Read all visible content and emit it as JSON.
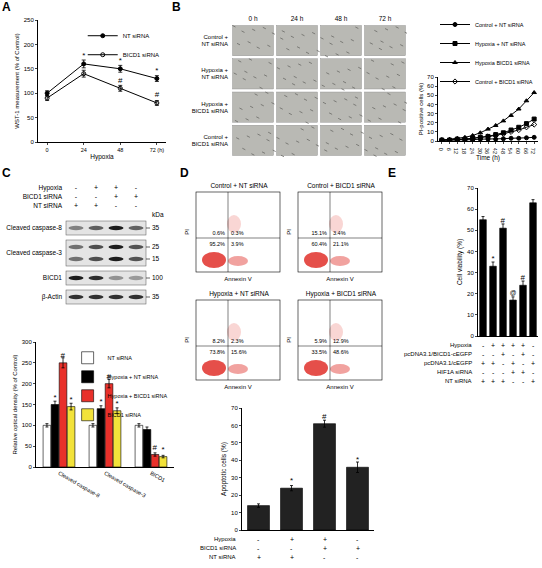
{
  "panel_labels": [
    "A",
    "B",
    "C",
    "D",
    "E"
  ],
  "chart_data": [
    {
      "type": "line",
      "x_label": "Hypoxia",
      "y_label": "WST-1 measurement (% of Control)",
      "x": [
        0,
        24,
        48,
        72
      ],
      "xlim": [
        -6,
        78
      ],
      "xticks": [
        0,
        24,
        48,
        {
          "value": 72,
          "label": "72 (h)"
        }
      ],
      "ylim": [
        0,
        250
      ],
      "yticks": [
        0,
        50,
        100,
        150,
        200,
        250
      ],
      "legend": "top right",
      "series": [
        {
          "name": "NT siRNA",
          "color": "#000000",
          "marker": "circle",
          "values": [
            100,
            160,
            150,
            130
          ],
          "errors": [
            5,
            8,
            7,
            6
          ],
          "sig": [
            "",
            "*",
            "*",
            "*"
          ]
        },
        {
          "name": "BICD1 siRNA",
          "color": "#000000",
          "marker": "circle-open",
          "values": [
            90,
            140,
            110,
            80
          ],
          "errors": [
            5,
            7,
            6,
            5
          ],
          "sig": [
            "",
            "*",
            "#",
            "#"
          ]
        }
      ]
    },
    {
      "type": "line",
      "x_label": "Time (h)",
      "y_label": "PI-positive cells (%)",
      "x": [
        0,
        6,
        12,
        18,
        24,
        30,
        36,
        42,
        48,
        54,
        60,
        66,
        72
      ],
      "xlim": [
        -3,
        75
      ],
      "xticks": [
        0,
        6,
        12,
        18,
        24,
        30,
        36,
        42,
        48,
        54,
        60,
        66,
        72
      ],
      "ylim": [
        0,
        70
      ],
      "yticks": [
        0,
        10,
        20,
        30,
        40,
        50,
        60,
        70
      ],
      "legend": "top",
      "series": [
        {
          "name": "Control + NT siRNA",
          "color": "#000000",
          "marker": "circle",
          "values": [
            1,
            1,
            1,
            1.5,
            1.5,
            2,
            2,
            2,
            2.5,
            3,
            3,
            3.5,
            4
          ]
        },
        {
          "name": "Hypoxia + NT siRNA",
          "color": "#000000",
          "marker": "square",
          "values": [
            1,
            1,
            2,
            2,
            3,
            4,
            5,
            7,
            9,
            12,
            15,
            19,
            24
          ]
        },
        {
          "name": "Hypoxia BICD1 siRNA",
          "color": "#000000",
          "marker": "triangle-up",
          "values": [
            1,
            2,
            3,
            4,
            6,
            9,
            13,
            17,
            22,
            28,
            35,
            44,
            53
          ]
        },
        {
          "name": "Control + BICD1 siRNA",
          "color": "#000000",
          "marker": "diamond-open",
          "values": [
            1,
            1,
            1.5,
            2,
            3,
            4,
            5,
            6,
            8,
            10,
            12,
            15,
            18
          ]
        }
      ]
    },
    {
      "type": "bar",
      "y_label": "Relative optical density (% of Control)",
      "categories": [
        "Cleaved caspase-8",
        "Cleaved caspase-3",
        "BICD1"
      ],
      "ylim": [
        0,
        300
      ],
      "yticks": [
        0,
        50,
        100,
        150,
        200,
        250,
        300
      ],
      "legend": "top right",
      "series": [
        {
          "name": "NT siRNA",
          "color": "#ffffff",
          "values": [
            100,
            100,
            100
          ],
          "errors": [
            4,
            4,
            4
          ],
          "sig": [
            "",
            "",
            ""
          ]
        },
        {
          "name": "Hypoxia + NT siRNA",
          "color": "#000000",
          "values": [
            150,
            140,
            90
          ],
          "errors": [
            8,
            7,
            6
          ],
          "sig": [
            "*",
            "*",
            ""
          ]
        },
        {
          "name": "Hypoxia + BICD1 siRNA",
          "color": "#e8302a",
          "values": [
            250,
            200,
            30
          ],
          "errors": [
            12,
            10,
            4
          ],
          "sig": [
            "#",
            "#",
            "#"
          ]
        },
        {
          "name": "BICD1 siRNA",
          "color": "#f2e23a",
          "values": [
            145,
            135,
            25
          ],
          "errors": [
            8,
            7,
            3
          ],
          "sig": [
            "*",
            "*",
            "*"
          ]
        }
      ]
    },
    {
      "type": "bar",
      "y_label": "Apoptotic cells (%)",
      "tick_labels": "y",
      "categories": [
        null,
        null,
        null,
        null
      ],
      "ylim": [
        0,
        70
      ],
      "yticks": [
        0,
        10,
        20,
        30,
        40,
        50,
        60,
        70
      ],
      "series": [
        {
          "color": "#222222",
          "values": [
            14,
            24,
            61,
            36
          ],
          "errors": [
            1,
            1.5,
            2,
            3
          ],
          "sig": [
            "",
            "*",
            "#",
            "*"
          ]
        }
      ],
      "conditions": [
        {
          "name": "Hypoxia",
          "marks": [
            "-",
            "+",
            "+",
            "-"
          ]
        },
        {
          "name": "BICD1 siRNA",
          "marks": [
            "-",
            "-",
            "+",
            "+"
          ]
        },
        {
          "name": "NT siRNA",
          "marks": [
            "+",
            "+",
            "-",
            "-"
          ]
        }
      ]
    },
    {
      "type": "bar",
      "y_label": "Cell viability (%)",
      "tick_labels": "y",
      "categories": [
        null,
        null,
        null,
        null,
        null,
        null
      ],
      "ylim": [
        0,
        70
      ],
      "yticks": [
        0,
        10,
        20,
        30,
        40,
        50,
        60,
        70
      ],
      "series": [
        {
          "color": "#000000",
          "values": [
            55,
            33,
            51,
            17,
            24,
            63
          ],
          "errors": [
            1.5,
            2,
            2,
            1.5,
            2,
            1.5
          ],
          "sig": [
            "",
            "*",
            "#",
            "@",
            "#",
            ""
          ]
        }
      ],
      "conditions": [
        {
          "name": "Hypoxia",
          "marks": [
            "-",
            "+",
            "+",
            "+",
            "+",
            "-"
          ]
        },
        {
          "name": "pcDNA3.1/BICD1-cEGFP",
          "marks": [
            "-",
            "-",
            "+",
            "-",
            "+",
            "-"
          ]
        },
        {
          "name": "pcDNA3.1/cEGFP",
          "marks": [
            "+",
            "+",
            "-",
            "+",
            "-",
            "+"
          ]
        },
        {
          "name": "HIF1A siRNA",
          "marks": [
            "-",
            "-",
            "-",
            "+",
            "+",
            "-"
          ]
        },
        {
          "name": "NT siRNA",
          "marks": [
            "+",
            "+",
            "+",
            "-",
            "-",
            "+"
          ]
        }
      ]
    }
  ],
  "micrographs": {
    "times": [
      "0 h",
      "24 h",
      "48 h",
      "72 h"
    ],
    "rows": [
      "Control + NT siRNA",
      "Hypoxia + NT siRNA",
      "Hypoxia + BICD1 siRNA",
      "Control + BICD1 siRNA"
    ]
  },
  "blot": {
    "conditions": [
      {
        "name": "Hypoxia",
        "marks": [
          "-",
          "+",
          "+",
          "-"
        ]
      },
      {
        "name": "BICD1 siRNA",
        "marks": [
          "-",
          "-",
          "+",
          "+"
        ]
      },
      {
        "name": "NT siRNA",
        "marks": [
          "+",
          "+",
          "-",
          "-"
        ]
      }
    ],
    "unit": "kDa",
    "bands": [
      {
        "name": "Cleaved caspase-8",
        "kda": [
          35
        ]
      },
      {
        "name": "Cleaved caspase-3",
        "kda": [
          25,
          15
        ]
      },
      {
        "name": "BICD1",
        "kda": [
          100
        ]
      },
      {
        "name": "β-Actin",
        "kda": [
          35
        ]
      }
    ]
  },
  "flow": {
    "x_label": "Annexin V",
    "y_label": "PI",
    "panels": [
      {
        "title": "Control + NT siRNA",
        "quadrants": [
          "0.6%",
          "0.3%",
          "95.2%",
          "3.9%"
        ]
      },
      {
        "title": "Control + BICD1 siRNA",
        "quadrants": [
          "15.1%",
          "3.4%",
          "60.4%",
          "21.1%"
        ]
      },
      {
        "title": "Hypoxia + NT siRNA",
        "quadrants": [
          "8.2%",
          "2.3%",
          "73.8%",
          "15.6%"
        ]
      },
      {
        "title": "Hypoxia + BICD1 siRNA",
        "quadrants": [
          "5.9%",
          "12.9%",
          "33.5%",
          "48.6%"
        ]
      }
    ]
  }
}
